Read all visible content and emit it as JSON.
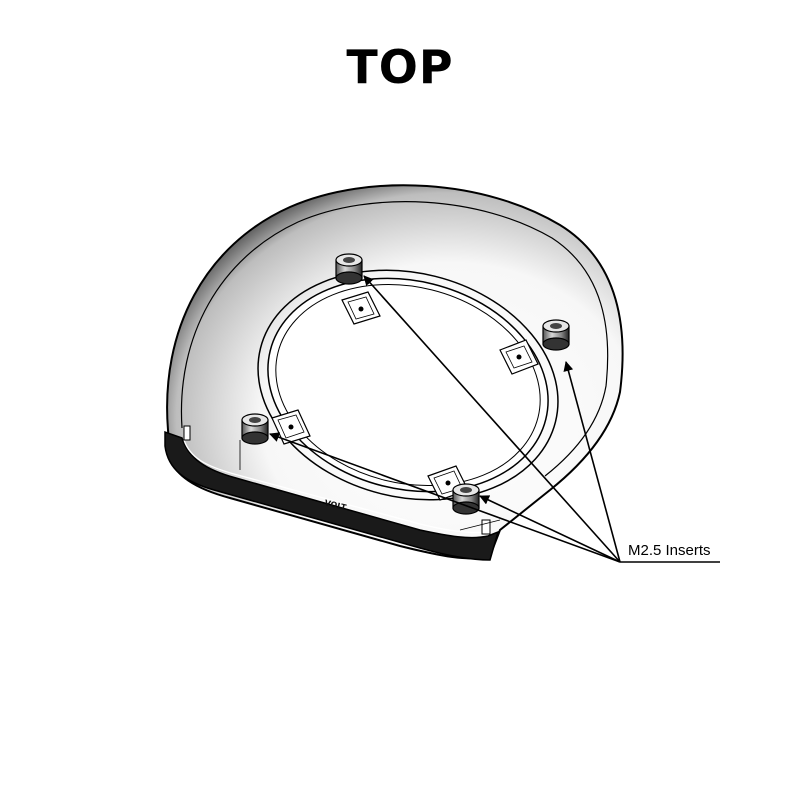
{
  "title": "TOP",
  "callout": {
    "label": "M2.5 Inserts"
  },
  "engraving": {
    "text": "VOLT"
  },
  "colors": {
    "ink": "#000000",
    "background": "#ffffff"
  }
}
